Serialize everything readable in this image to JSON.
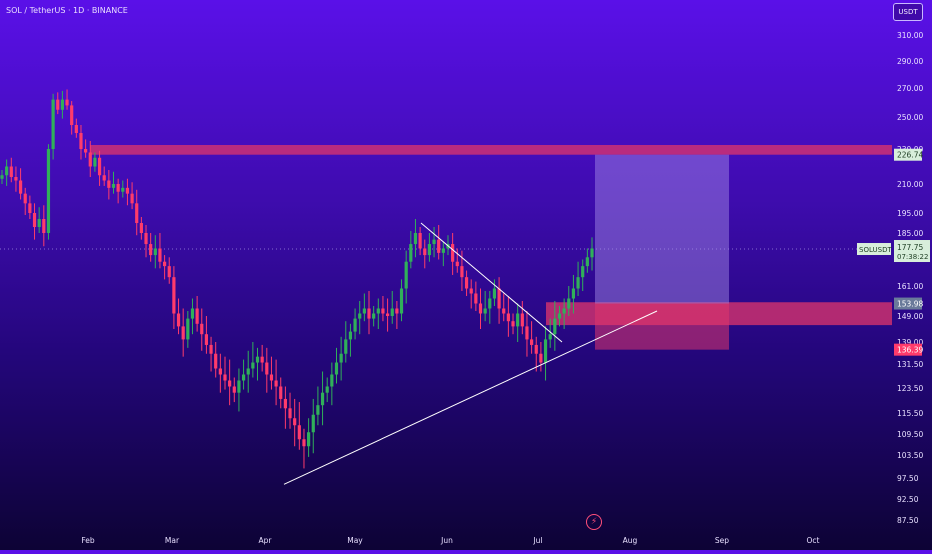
{
  "header": {
    "symbol_title": "SOL / TetherUS · 1D · BINANCE",
    "currency_button": "USDT"
  },
  "colors": {
    "bull": "#30b05a",
    "bear": "#ff3b6b",
    "zone": "#e0366b",
    "projection": "#a890e8",
    "trendline": "#ffffff",
    "price_label_bg": "#2d8b4f"
  },
  "icons": {
    "lightning": "lightning-bolt-icon"
  },
  "chart_data": {
    "type": "candlestick",
    "symbol": "SOLUSDT",
    "price_axis_ticks": [
      "310.00",
      "290.00",
      "270.00",
      "250.00",
      "230.00",
      "210.00",
      "195.00",
      "185.00",
      "161.00",
      "149.00",
      "139.00",
      "131.50",
      "123.50",
      "115.50",
      "109.50",
      "103.50",
      "97.50",
      "92.50",
      "87.50"
    ],
    "time_axis_ticks": [
      "Feb",
      "Mar",
      "Apr",
      "May",
      "Jun",
      "Jul",
      "Aug",
      "Sep",
      "Oct"
    ],
    "last_price": "177.75",
    "countdown": "07:38:22",
    "price_labels": [
      {
        "value": "226.74",
        "kind": "target"
      },
      {
        "value": "153.98",
        "kind": "entry"
      },
      {
        "value": "136.39",
        "kind": "stop"
      }
    ],
    "zones": [
      {
        "name": "resistance-zone",
        "low": 226.74,
        "high": 232.5,
        "from": "Feb",
        "to": "end"
      },
      {
        "name": "support-zone",
        "low": 145.5,
        "high": 154.5,
        "from": "Jul",
        "to": "end"
      }
    ],
    "long_position": {
      "target": 226.74,
      "entry": 153.98,
      "stop": 136.39
    },
    "trendlines": [
      {
        "name": "descending-resistance",
        "from": {
          "date": "mid-May",
          "price": 190
        },
        "to": {
          "date": "early-Jul",
          "price": 139
        }
      },
      {
        "name": "ascending-support",
        "from": {
          "date": "Apr",
          "price": 96
        },
        "to": {
          "date": "late-Jul",
          "price": 151
        }
      }
    ],
    "price_path": [
      215,
      220,
      214,
      212,
      205,
      200,
      195,
      188,
      192,
      185,
      230,
      262,
      255,
      262,
      258,
      245,
      240,
      230,
      228,
      220,
      225,
      215,
      212,
      208,
      210,
      206,
      208,
      205,
      200,
      190,
      185,
      180,
      175,
      178,
      172,
      170,
      165,
      150,
      145,
      140,
      148,
      152,
      146,
      142,
      138,
      135,
      130,
      128,
      126,
      124,
      122,
      126,
      128,
      130,
      132,
      134,
      132,
      128,
      126,
      124,
      120,
      117,
      114,
      112,
      108,
      106,
      110,
      115,
      118,
      122,
      124,
      128,
      132,
      135,
      140,
      143,
      148,
      150,
      152,
      148,
      150,
      152,
      150,
      149,
      152,
      150,
      160,
      172,
      180,
      185,
      178,
      175,
      180,
      182,
      176,
      178,
      180,
      172,
      170,
      165,
      160,
      158,
      154,
      150,
      152,
      156,
      160,
      152,
      150,
      147,
      145,
      150,
      145,
      140,
      138,
      135,
      132,
      140,
      142,
      148,
      150,
      152,
      156,
      160,
      165,
      170,
      174,
      178
    ]
  }
}
